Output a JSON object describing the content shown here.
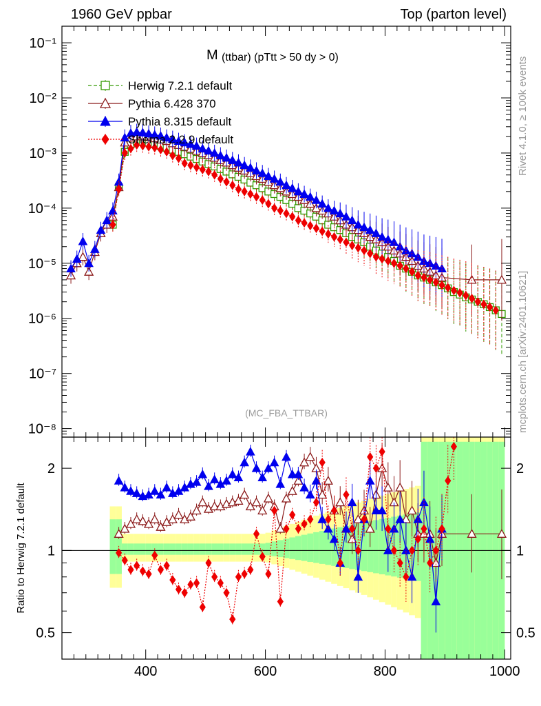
{
  "header": {
    "left": "1960 GeV ppbar",
    "right": "Top (parton level)"
  },
  "side_text": {
    "rivet": "Rivet 4.1.0, ≥ 100k events",
    "mcplots": "mcplots.cern.ch [arXiv:2401.10621]"
  },
  "plot_title": {
    "main": "M",
    "sub": "(ttbar) (pTtt > 50 dy > 0)"
  },
  "analysis_tag": "(MC_FBA_TTBAR)",
  "ratio_ylabel": "Ratio to Herwig 7.2.1 default",
  "colors": {
    "herwig": "#339900",
    "pythia6": "#8b1a1a",
    "pythia8": "#0000ee",
    "sherpa": "#ee0000",
    "band_inner": "#99ff99",
    "band_outer": "#ffff99"
  },
  "chart_data": [
    {
      "type": "line",
      "panel": "main",
      "yscale": "log",
      "xlim": [
        260,
        1010
      ],
      "ylim": [
        7e-09,
        0.2
      ],
      "ytick_labels": [
        "10⁻⁸",
        "10⁻⁷",
        "10⁻⁶",
        "10⁻⁵",
        "10⁻⁴",
        "10⁻³",
        "10⁻²",
        "10⁻¹"
      ],
      "ytick_values": [
        1e-08,
        1e-07,
        1e-06,
        1e-05,
        0.0001,
        0.001,
        0.01,
        0.1
      ],
      "legend": [
        "Herwig 7.2.1 default",
        "Pythia 6.428 370",
        "Pythia 8.315 default",
        "Sherpa 2.2.9 default"
      ],
      "series": [
        {
          "name": "Herwig 7.2.1 default",
          "key": "herwig",
          "marker": "open-square",
          "x": [
            345,
            355,
            365,
            375,
            385,
            395,
            405,
            415,
            425,
            435,
            445,
            455,
            465,
            475,
            485,
            495,
            505,
            515,
            525,
            535,
            545,
            555,
            565,
            575,
            585,
            595,
            605,
            615,
            625,
            635,
            645,
            655,
            665,
            675,
            685,
            695,
            705,
            715,
            725,
            735,
            745,
            755,
            765,
            775,
            785,
            795,
            805,
            815,
            825,
            835,
            845,
            855,
            865,
            875,
            885,
            895,
            905,
            915,
            925,
            935,
            945,
            955,
            965,
            975,
            985,
            995
          ],
          "y": [
            5e-05,
            0.00024,
            0.00105,
            0.00145,
            0.0016,
            0.0016,
            0.00155,
            0.00145,
            0.00135,
            0.00125,
            0.00115,
            0.00105,
            0.00095,
            0.00086,
            0.00078,
            0.0007,
            0.00063,
            0.00057,
            0.00051,
            0.00046,
            0.00041,
            0.00037,
            0.00033,
            0.00029,
            0.00026,
            0.00023,
            0.0002,
            0.00018,
            0.00016,
            0.00014,
            0.00012,
            0.0001,
            9e-05,
            8e-05,
            7e-05,
            6e-05,
            5e-05,
            4.5e-05,
            4e-05,
            3.5e-05,
            3e-05,
            2.7e-05,
            2.4e-05,
            2e-05,
            1.7e-05,
            1.5e-05,
            1.3e-05,
            1.1e-05,
            9e-06,
            8e-06,
            7e-06,
            6e-06,
            5.5e-06,
            5e-06,
            4.5e-06,
            4e-06,
            3.5e-06,
            3e-06,
            2.7e-06,
            2.4e-06,
            2.2e-06,
            2e-06,
            1.8e-06,
            1.6e-06,
            1.4e-06,
            1.2e-06
          ]
        },
        {
          "name": "Pythia 6.428 370",
          "key": "pythia6",
          "marker": "open-triangle",
          "x": [
            275,
            285,
            295,
            305,
            315,
            325,
            335,
            345,
            355,
            365,
            375,
            385,
            395,
            405,
            415,
            425,
            435,
            445,
            455,
            465,
            475,
            485,
            495,
            505,
            515,
            525,
            535,
            545,
            555,
            565,
            575,
            585,
            595,
            605,
            615,
            625,
            635,
            645,
            655,
            665,
            675,
            685,
            695,
            705,
            715,
            725,
            735,
            745,
            755,
            765,
            775,
            785,
            795,
            805,
            815,
            825,
            835,
            845,
            855,
            865,
            875,
            885,
            895,
            945,
            995
          ],
          "y": [
            6e-06,
            1e-05,
            1.3e-05,
            7e-06,
            1.6e-05,
            3.5e-05,
            5e-05,
            7e-05,
            0.00024,
            0.00155,
            0.0019,
            0.002,
            0.002,
            0.00195,
            0.00185,
            0.00175,
            0.00165,
            0.0015,
            0.0014,
            0.0013,
            0.0012,
            0.0011,
            0.001,
            0.00091,
            0.00082,
            0.00074,
            0.00067,
            0.0006,
            0.00054,
            0.00048,
            0.00043,
            0.00038,
            0.00034,
            0.0003,
            0.00026,
            0.00023,
            0.0002,
            0.00018,
            0.00016,
            0.00014,
            0.00012,
            0.0001,
            9e-05,
            8e-05,
            7e-05,
            6e-05,
            5e-05,
            4.5e-05,
            4e-05,
            3.5e-05,
            3e-05,
            2.7e-05,
            2.4e-05,
            2e-05,
            1.7e-05,
            1.5e-05,
            1.3e-05,
            1.1e-05,
            9e-06,
            8e-06,
            7e-06,
            6e-06,
            5.5e-06,
            5e-06,
            5e-06
          ]
        },
        {
          "name": "Pythia 8.315 default",
          "key": "pythia8",
          "marker": "filled-triangle",
          "x": [
            275,
            285,
            295,
            305,
            315,
            325,
            335,
            345,
            355,
            365,
            375,
            385,
            395,
            405,
            415,
            425,
            435,
            445,
            455,
            465,
            475,
            485,
            495,
            505,
            515,
            525,
            535,
            545,
            555,
            565,
            575,
            585,
            595,
            605,
            615,
            625,
            635,
            645,
            655,
            665,
            675,
            685,
            695,
            705,
            715,
            725,
            735,
            745,
            755,
            765,
            775,
            785,
            795,
            805,
            815,
            825,
            835,
            845,
            855,
            865,
            875,
            885,
            895
          ],
          "y": [
            8e-06,
            1.2e-05,
            2.5e-05,
            1e-05,
            1.8e-05,
            4e-05,
            6e-05,
            9e-05,
            0.0003,
            0.0019,
            0.0023,
            0.0024,
            0.00235,
            0.00225,
            0.00215,
            0.00205,
            0.0019,
            0.0018,
            0.00165,
            0.00155,
            0.00145,
            0.00135,
            0.0012,
            0.0011,
            0.001,
            0.0009,
            0.00082,
            0.00074,
            0.00067,
            0.0006,
            0.00054,
            0.00048,
            0.00043,
            0.00038,
            0.00034,
            0.0003,
            0.00026,
            0.00023,
            0.0002,
            0.00018,
            0.00016,
            0.00014,
            0.00012,
            0.0001,
            9e-05,
            8e-05,
            7e-05,
            6e-05,
            5e-05,
            4.5e-05,
            4e-05,
            3.5e-05,
            3e-05,
            2.7e-05,
            2.4e-05,
            2e-05,
            1.7e-05,
            1.5e-05,
            1.3e-05,
            1.1e-05,
            1e-05,
            9e-06,
            8e-06
          ]
        },
        {
          "name": "Sherpa 2.2.9 default",
          "key": "sherpa",
          "marker": "filled-diamond",
          "x": [
            345,
            355,
            365,
            375,
            385,
            395,
            405,
            415,
            425,
            435,
            445,
            455,
            465,
            475,
            485,
            495,
            505,
            515,
            525,
            535,
            545,
            555,
            565,
            575,
            585,
            595,
            605,
            615,
            625,
            635,
            645,
            655,
            665,
            675,
            685,
            695,
            705,
            715,
            725,
            735,
            745,
            755,
            765,
            775,
            785,
            795,
            805,
            815,
            825,
            835,
            845,
            855,
            865,
            875,
            885,
            895,
            905,
            915,
            925,
            935,
            945,
            955,
            965,
            975,
            985
          ],
          "y": [
            5e-05,
            0.00022,
            0.001,
            0.0012,
            0.0014,
            0.00135,
            0.0013,
            0.00125,
            0.00115,
            0.00105,
            0.0009,
            0.0008,
            0.00065,
            0.0006,
            0.00055,
            0.0005,
            0.00046,
            0.0004,
            0.00034,
            0.0003,
            0.00026,
            0.00022,
            0.0002,
            0.00018,
            0.00016,
            0.00014,
            0.00012,
            0.0001,
            9e-05,
            8e-05,
            7e-05,
            6e-05,
            5.4e-05,
            4.8e-05,
            4.3e-05,
            3.8e-05,
            3.4e-05,
            3e-05,
            2.7e-05,
            2.4e-05,
            2.1e-05,
            1.9e-05,
            1.7e-05,
            1.5e-05,
            1.3e-05,
            1.2e-05,
            1.1e-05,
            1e-05,
            9e-06,
            8e-06,
            7e-06,
            6e-06,
            5.5e-06,
            5e-06,
            4.5e-06,
            4e-06,
            3.6e-06,
            3.2e-06,
            2.9e-06,
            2.6e-06,
            2.3e-06,
            2e-06,
            1.8e-06,
            1.6e-06,
            1.4e-06
          ]
        }
      ]
    },
    {
      "type": "line",
      "panel": "ratio",
      "yscale": "log",
      "xlim": [
        260,
        1010
      ],
      "ylim": [
        0.4,
        2.6
      ],
      "xtick_labels": [
        "400",
        "600",
        "800",
        "1000"
      ],
      "xtick_values": [
        400,
        600,
        800,
        1000
      ],
      "ytick_labels": [
        "0.5",
        "1",
        "2"
      ],
      "ytick_values": [
        0.5,
        1,
        2
      ],
      "reference_line": 1,
      "series": [
        {
          "name": "Pythia 6.428 370",
          "key": "pythia6",
          "marker": "open-triangle",
          "x": [
            355,
            365,
            375,
            385,
            395,
            405,
            415,
            425,
            435,
            445,
            455,
            465,
            475,
            485,
            495,
            505,
            515,
            525,
            535,
            545,
            555,
            565,
            575,
            585,
            595,
            605,
            615,
            625,
            635,
            645,
            655,
            665,
            675,
            685,
            695,
            705,
            715,
            725,
            735,
            745,
            755,
            765,
            775,
            785,
            795,
            805,
            815,
            825,
            835,
            845,
            855,
            865,
            875,
            885,
            895,
            945,
            995
          ],
          "y": [
            1.15,
            1.2,
            1.25,
            1.3,
            1.28,
            1.25,
            1.3,
            1.22,
            1.27,
            1.3,
            1.35,
            1.3,
            1.33,
            1.4,
            1.5,
            1.42,
            1.45,
            1.45,
            1.48,
            1.5,
            1.52,
            1.6,
            1.45,
            1.5,
            1.4,
            1.55,
            1.45,
            1.2,
            1.55,
            1.65,
            1.8,
            2.1,
            2.2,
            2.0,
            1.6,
            1.8,
            1.4,
            1.5,
            1.2,
            1.1,
            1.3,
            1.4,
            1.2,
            1.6,
            2.0,
            1.7,
            1.5,
            1.7,
            1.3,
            1.4,
            1.15,
            1.15,
            1.15,
            0.9,
            1.15,
            1.15,
            1.15
          ]
        },
        {
          "name": "Pythia 8.315 default",
          "key": "pythia8",
          "marker": "filled-triangle",
          "x": [
            355,
            365,
            375,
            385,
            395,
            405,
            415,
            425,
            435,
            445,
            455,
            465,
            475,
            485,
            495,
            505,
            515,
            525,
            535,
            545,
            555,
            565,
            575,
            585,
            595,
            605,
            615,
            625,
            635,
            645,
            655,
            665,
            675,
            685,
            695,
            705,
            715,
            725,
            735,
            745,
            755,
            765,
            775,
            785,
            795,
            805,
            815,
            825,
            835,
            845,
            855,
            865,
            875,
            885,
            895
          ],
          "y": [
            1.8,
            1.7,
            1.65,
            1.62,
            1.58,
            1.6,
            1.65,
            1.6,
            1.7,
            1.62,
            1.65,
            1.7,
            1.75,
            1.78,
            1.9,
            1.72,
            1.82,
            1.75,
            1.8,
            1.9,
            1.85,
            2.1,
            2.3,
            2.0,
            1.85,
            2.0,
            2.1,
            1.75,
            2.2,
            1.9,
            1.9,
            1.7,
            1.6,
            1.8,
            1.3,
            1.2,
            1.1,
            0.9,
            1.2,
            1.5,
            0.8,
            1.3,
            1.8,
            1.4,
            1.4,
            1.0,
            1.2,
            1.3,
            1.0,
            0.8,
            1.3,
            1.5,
            1.1,
            0.65,
            1.2
          ]
        },
        {
          "name": "Sherpa 2.2.9 default",
          "key": "sherpa",
          "marker": "filled-diamond",
          "x": [
            355,
            365,
            375,
            385,
            395,
            405,
            415,
            425,
            435,
            445,
            455,
            465,
            475,
            485,
            495,
            505,
            515,
            525,
            535,
            545,
            555,
            565,
            575,
            585,
            595,
            605,
            615,
            625,
            635,
            645,
            655,
            665,
            675,
            685,
            695,
            705,
            715,
            725,
            735,
            745,
            755,
            765,
            775,
            785,
            795,
            805,
            815,
            825,
            835,
            845,
            855,
            865,
            875,
            885,
            895,
            905,
            915
          ],
          "y": [
            0.98,
            0.92,
            0.85,
            0.88,
            0.84,
            0.82,
            0.96,
            0.85,
            0.88,
            0.78,
            0.72,
            0.7,
            0.75,
            0.76,
            0.62,
            0.9,
            0.8,
            0.76,
            0.7,
            0.56,
            0.8,
            0.82,
            0.85,
            1.15,
            0.95,
            0.82,
            1.4,
            0.65,
            1.2,
            1.35,
            1.2,
            1.25,
            1.3,
            1.5,
            2.1,
            1.3,
            1.4,
            0.9,
            1.6,
            1.2,
            1.0,
            1.3,
            2.2,
            2.0,
            2.3,
            1.2,
            1.0,
            0.9,
            0.8,
            1.0,
            1.1,
            1.2,
            0.9,
            1.0,
            1.2,
            1.8,
            2.4
          ]
        }
      ]
    }
  ]
}
